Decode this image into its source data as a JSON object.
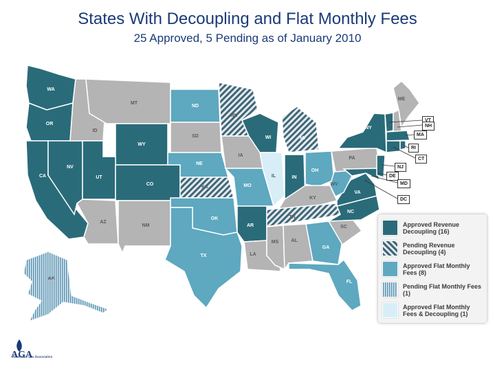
{
  "title": "States With Decoupling and Flat Monthly Fees",
  "subtitle": "25 Approved, 5 Pending as of January 2010",
  "colors": {
    "approved_decoupling": "#2a6b7a",
    "pending_decoupling": "hatched-grey",
    "approved_flat": "#5ea8c0",
    "pending_flat": "striped-blue",
    "approved_both": "#d8eef7",
    "none": "#b4b4b4"
  },
  "states": {
    "WA": "WA",
    "OR": "OR",
    "CA": "CA",
    "NV": "NV",
    "ID": "ID",
    "MT": "MT",
    "WY": "WY",
    "UT": "UT",
    "CO": "CO",
    "AZ": "AZ",
    "NM": "NM",
    "ND": "ND",
    "SD": "SD",
    "NE": "NE",
    "KS": "KS",
    "OK": "OK",
    "TX": "TX",
    "MN": "MN",
    "IA": "IA",
    "MO": "MO",
    "AR": "AR",
    "LA": "LA",
    "WI": "WI",
    "IL": "IL",
    "MS": "MS",
    "MI": "MI",
    "IN": "IN",
    "KY": "KY",
    "TN": "TN",
    "AL": "AL",
    "OH": "OH",
    "WV": "WV",
    "VA": "VA",
    "NC": "NC",
    "SC": "SC",
    "GA": "GA",
    "FL": "FL",
    "PA": "PA",
    "NY": "NY",
    "ME": "ME",
    "AK": "AK"
  },
  "northeast_labels": {
    "VT": "VT",
    "NH": "NH",
    "MA": "MA",
    "RI": "RI",
    "CT": "CT",
    "NJ": "NJ",
    "DE": "DE",
    "MD": "MD",
    "DC": "DC"
  },
  "legend": [
    {
      "label": "Approved Revenue Decoupling (16)"
    },
    {
      "label": "Pending Revenue Decoupling (4)"
    },
    {
      "label": "Approved Flat Monthly Fees (8)"
    },
    {
      "label": "Pending Flat Monthly Fees (1)"
    },
    {
      "label": "Approved Flat Monthly Fees & Decoupling (1)"
    }
  ],
  "logo": {
    "mark": "AGA",
    "org": "American Gas Association"
  }
}
